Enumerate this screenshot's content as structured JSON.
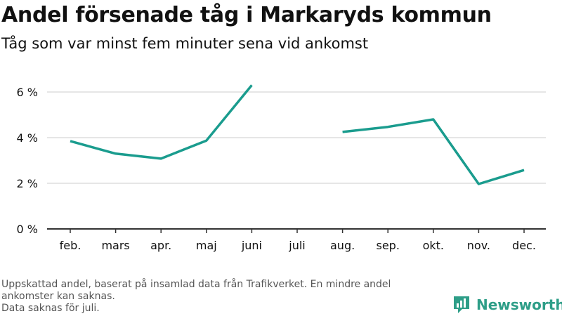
{
  "title": "Andel försenade tåg i Markaryds kommun",
  "subtitle": "Tåg som var minst fem minuter sena vid ankomst",
  "footer": {
    "line1": "Uppskattad andel, baserat på insamlad data från Trafikverket. En mindre andel ankomster kan saknas.",
    "line2": "Data saknas för juli."
  },
  "brand": {
    "name": "Newsworthy",
    "color": "#2e9e88",
    "icon": "bar-chart-icon"
  },
  "colors": {
    "line": "#1a9c8e",
    "grid": "#dddddd",
    "axis": "#333333",
    "text": "#111111",
    "muted": "#555555"
  },
  "chart_data": {
    "type": "line",
    "categories": [
      "feb.",
      "mars",
      "apr.",
      "maj",
      "juni",
      "juli",
      "aug.",
      "sep.",
      "okt.",
      "nov.",
      "dec."
    ],
    "series": [
      {
        "values": [
          3.85,
          3.3,
          3.08,
          3.87,
          6.3,
          null,
          4.25,
          4.47,
          4.8,
          1.97,
          2.58
        ]
      }
    ],
    "ylim": [
      0,
      6.4
    ],
    "yticks": [
      0,
      2,
      4,
      6
    ],
    "ytick_labels": [
      "0 %",
      "2 %",
      "4 %",
      "6 %"
    ],
    "grid": true,
    "xlabel": "",
    "ylabel": ""
  }
}
